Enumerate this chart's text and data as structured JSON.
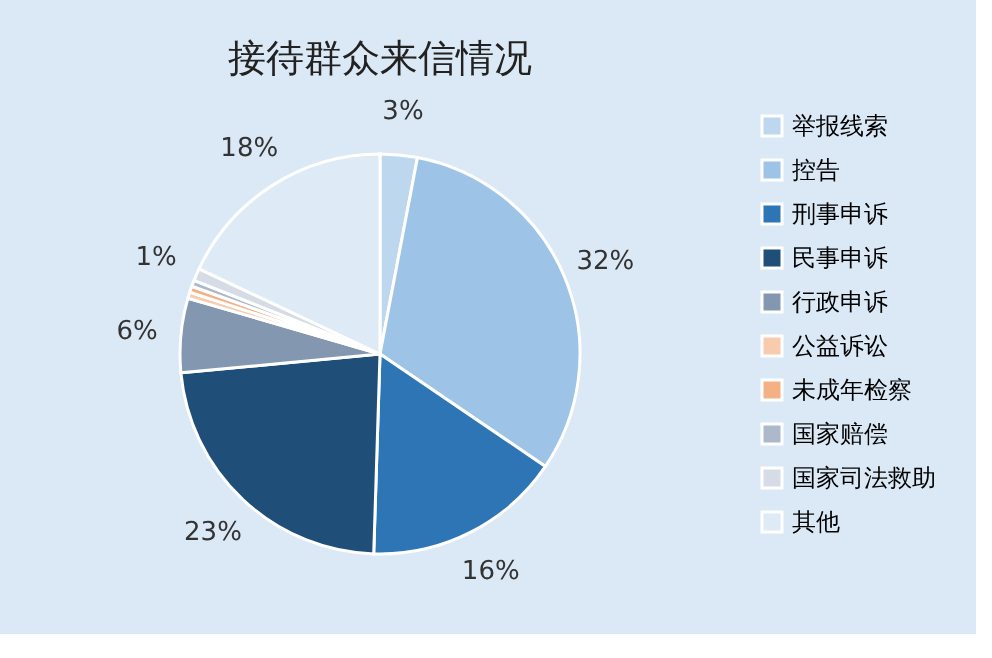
{
  "chart_data": {
    "type": "pie",
    "title": "接待群众来信情况",
    "categories": [
      "举报线索",
      "控告",
      "刑事申诉",
      "民事申诉",
      "行政申诉",
      "公益诉讼",
      "未成年检察",
      "国家赔偿",
      "国家司法救助",
      "其他"
    ],
    "values": [
      3,
      31.5,
      16,
      23,
      6,
      0.5,
      0.5,
      0.5,
      1,
      18
    ],
    "value_labels": [
      "3%",
      "32%",
      "16%",
      "23%",
      "6%",
      null,
      null,
      null,
      "1%",
      "18%"
    ],
    "colors": [
      "#bdd7ee",
      "#9dc3e6",
      "#2e75b6",
      "#1f4e79",
      "#8497b0",
      "#f8cbad",
      "#f4b183",
      "#adb9ca",
      "#d6dce5",
      "#deebf7"
    ],
    "legend": "right"
  }
}
